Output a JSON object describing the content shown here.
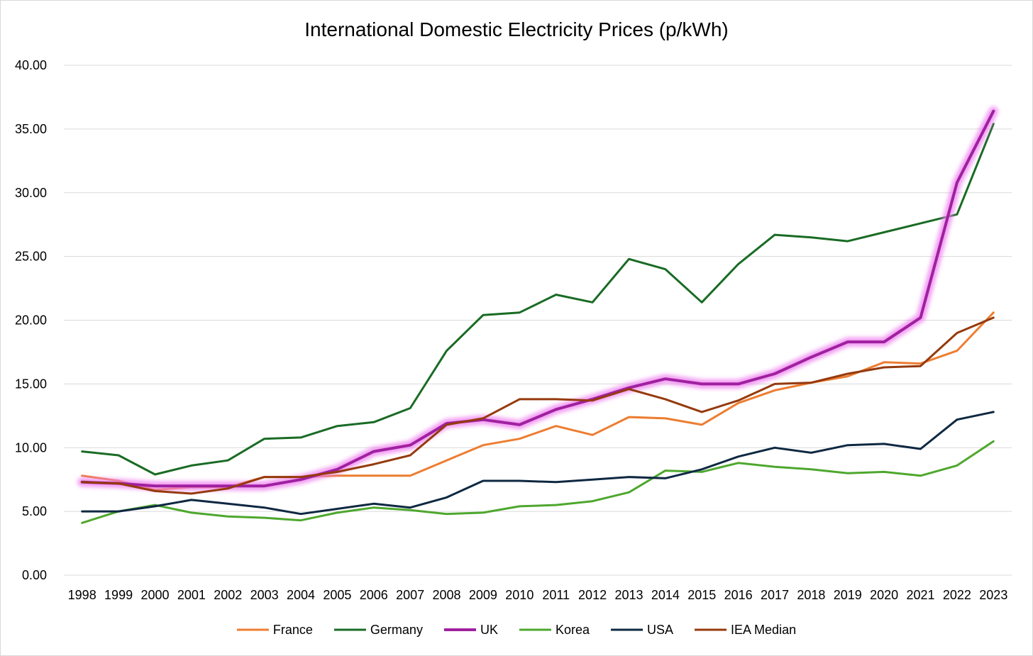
{
  "chart_data": {
    "type": "line",
    "title": "International Domestic Electricity Prices (p/kWh)",
    "xlabel": "",
    "ylabel": "",
    "ylim": [
      0,
      40
    ],
    "yticks": [
      "0.00",
      "5.00",
      "10.00",
      "15.00",
      "20.00",
      "25.00",
      "30.00",
      "35.00",
      "40.00"
    ],
    "grid": true,
    "legend_position": "bottom",
    "categories": [
      "1998",
      "1999",
      "2000",
      "2001",
      "2002",
      "2003",
      "2004",
      "2005",
      "2006",
      "2007",
      "2008",
      "2009",
      "2010",
      "2011",
      "2012",
      "2013",
      "2014",
      "2015",
      "2016",
      "2017",
      "2018",
      "2019",
      "2020",
      "2021",
      "2022",
      "2023"
    ],
    "series": [
      {
        "name": "France",
        "color": "#ed7d31",
        "glow": false,
        "values": [
          7.8,
          7.4,
          6.7,
          6.9,
          6.9,
          7.7,
          7.7,
          7.8,
          7.8,
          7.8,
          9.0,
          10.2,
          10.7,
          11.7,
          11.0,
          12.4,
          12.3,
          11.8,
          13.5,
          14.5,
          15.1,
          15.6,
          16.7,
          16.6,
          17.6,
          20.6
        ]
      },
      {
        "name": "Germany",
        "color": "#196b24",
        "glow": false,
        "values": [
          9.7,
          9.4,
          7.9,
          8.6,
          9.0,
          10.7,
          10.8,
          11.7,
          12.0,
          13.1,
          17.6,
          20.4,
          20.6,
          22.0,
          21.4,
          24.8,
          24.0,
          21.4,
          24.4,
          26.7,
          26.5,
          26.2,
          26.9,
          27.6,
          28.3,
          35.4
        ]
      },
      {
        "name": "UK",
        "color": "#a020a0",
        "glow": true,
        "values": [
          7.3,
          7.2,
          7.0,
          7.0,
          7.0,
          7.0,
          7.5,
          8.3,
          9.7,
          10.2,
          11.9,
          12.2,
          11.8,
          13.0,
          13.8,
          14.7,
          15.4,
          15.0,
          15.0,
          15.8,
          17.1,
          18.3,
          18.3,
          20.2,
          30.8,
          36.4
        ]
      },
      {
        "name": "Korea",
        "color": "#4ea72e",
        "glow": false,
        "values": [
          4.1,
          5.0,
          5.5,
          4.9,
          4.6,
          4.5,
          4.3,
          4.9,
          5.3,
          5.1,
          4.8,
          4.9,
          5.4,
          5.5,
          5.8,
          6.5,
          8.2,
          8.1,
          8.8,
          8.5,
          8.3,
          8.0,
          8.1,
          7.8,
          8.6,
          10.5
        ]
      },
      {
        "name": "USA",
        "color": "#0e2841",
        "glow": false,
        "values": [
          5.0,
          5.0,
          5.4,
          5.9,
          5.6,
          5.3,
          4.8,
          5.2,
          5.6,
          5.3,
          6.1,
          7.4,
          7.4,
          7.3,
          7.5,
          7.7,
          7.6,
          8.3,
          9.3,
          10.0,
          9.6,
          10.2,
          10.3,
          9.9,
          12.2,
          12.8
        ]
      },
      {
        "name": "IEA Median",
        "color": "#953a0d",
        "glow": false,
        "values": [
          7.3,
          7.2,
          6.6,
          6.4,
          6.8,
          7.7,
          7.7,
          8.1,
          8.7,
          9.4,
          11.8,
          12.3,
          13.8,
          13.8,
          13.7,
          14.6,
          13.8,
          12.8,
          13.7,
          15.0,
          15.1,
          15.8,
          16.3,
          16.4,
          19.0,
          20.2
        ]
      }
    ]
  }
}
